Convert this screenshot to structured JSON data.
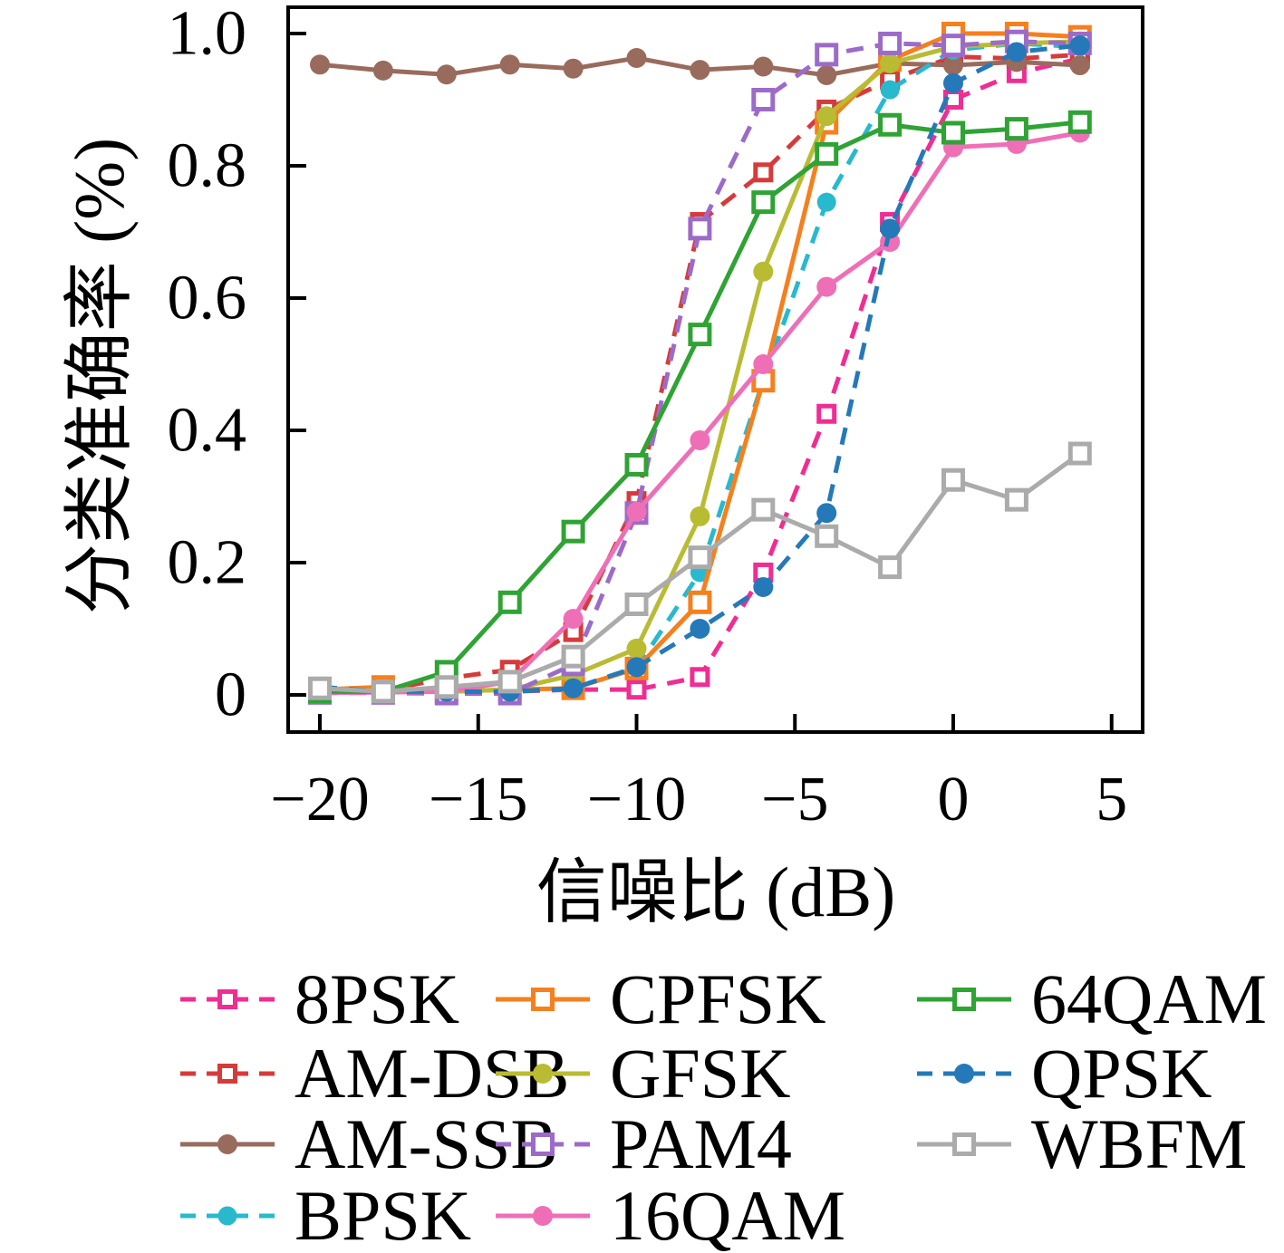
{
  "chart_data": {
    "type": "line",
    "title": "",
    "xlabel": "信噪比 (dB)",
    "ylabel": "分类准确率 (%)",
    "grid": false,
    "legend_position": "below-plot, 3 columns",
    "xlim": [
      -21,
      6
    ],
    "ylim": [
      -0.056,
      1.04
    ],
    "x": [
      -20,
      -18,
      -16,
      -14,
      -12,
      -10,
      -8,
      -6,
      -4,
      -2,
      0,
      2,
      4
    ],
    "x_ticks": [
      {
        "label": "−20",
        "value": -20
      },
      {
        "label": "−15",
        "value": -15
      },
      {
        "label": "−10",
        "value": -10
      },
      {
        "label": "−5",
        "value": -5
      },
      {
        "label": "0",
        "value": 0
      },
      {
        "label": "5",
        "value": 5
      }
    ],
    "y_ticks": [
      {
        "label": "1.0",
        "value": 1.0
      },
      {
        "label": "0.8",
        "value": 0.8
      },
      {
        "label": "0.6",
        "value": 0.6
      },
      {
        "label": "0.4",
        "value": 0.4
      },
      {
        "label": "0.2",
        "value": 0.2
      },
      {
        "label": "0",
        "value": 0.0
      }
    ],
    "series": [
      {
        "name": "8PSK",
        "color": "#f02d93",
        "line": "dashed",
        "marker": "square",
        "marker_size": 17,
        "values": [
          0.005,
          0.005,
          0.005,
          0.005,
          0.008,
          0.008,
          0.027,
          0.185,
          0.425,
          0.715,
          0.9,
          0.94,
          0.962
        ]
      },
      {
        "name": "AM-DSB",
        "color": "#d63b3b",
        "line": "dashed",
        "marker": "square",
        "marker_size": 17,
        "values": [
          0.007,
          0.007,
          0.025,
          0.038,
          0.095,
          0.293,
          0.715,
          0.79,
          0.885,
          0.93,
          0.965,
          0.962,
          0.968
        ]
      },
      {
        "name": "AM-SSB",
        "color": "#996b5d",
        "line": "solid",
        "marker": "circle",
        "marker_size": 22,
        "values": [
          0.953,
          0.944,
          0.938,
          0.953,
          0.947,
          0.963,
          0.945,
          0.95,
          0.937,
          0.955,
          0.952,
          0.957,
          0.952
        ]
      },
      {
        "name": "BPSK",
        "color": "#29b9ce",
        "line": "dashed",
        "marker": "circle",
        "marker_size": 21,
        "values": [
          0.005,
          0.003,
          0.003,
          0.005,
          0.01,
          0.04,
          0.185,
          0.475,
          0.745,
          0.915,
          0.975,
          0.985,
          0.98
        ]
      },
      {
        "name": "CPFSK",
        "color": "#f5801e",
        "line": "solid",
        "marker": "square",
        "marker_size": 21,
        "values": [
          0.008,
          0.012,
          0.005,
          0.008,
          0.01,
          0.04,
          0.14,
          0.475,
          0.865,
          0.96,
          1.0,
          1.0,
          0.995
        ]
      },
      {
        "name": "GFSK",
        "color": "#b9bc33",
        "line": "solid",
        "marker": "circle",
        "marker_size": 22,
        "values": [
          0.005,
          0.005,
          0.005,
          0.008,
          0.03,
          0.07,
          0.27,
          0.64,
          0.875,
          0.955,
          0.98,
          0.985,
          0.988
        ]
      },
      {
        "name": "PAM4",
        "color": "#9c6bc8",
        "line": "dashed",
        "marker": "square",
        "marker_size": 21,
        "values": [
          0.003,
          0.003,
          0.002,
          0.002,
          0.046,
          0.275,
          0.705,
          0.9,
          0.968,
          0.985,
          0.982,
          0.988,
          0.985
        ]
      },
      {
        "name": "16QAM",
        "color": "#ef6fb7",
        "line": "solid",
        "marker": "circle",
        "marker_size": 22,
        "values": [
          0.003,
          0.004,
          0.005,
          0.02,
          0.115,
          0.277,
          0.385,
          0.5,
          0.617,
          0.685,
          0.828,
          0.833,
          0.85
        ]
      },
      {
        "name": "64QAM",
        "color": "#2fa334",
        "line": "solid",
        "marker": "square",
        "marker_size": 21,
        "values": [
          0.005,
          0.005,
          0.035,
          0.14,
          0.247,
          0.348,
          0.545,
          0.745,
          0.818,
          0.862,
          0.85,
          0.856,
          0.866
        ]
      },
      {
        "name": "QPSK",
        "color": "#2579b8",
        "line": "dashed",
        "marker": "circle",
        "marker_size": 22,
        "values": [
          0.012,
          0.005,
          0.005,
          0.005,
          0.01,
          0.042,
          0.1,
          0.163,
          0.275,
          0.705,
          0.925,
          0.972,
          0.982
        ]
      },
      {
        "name": "WBFM",
        "color": "#ababab",
        "line": "solid",
        "marker": "square",
        "marker_size": 21,
        "values": [
          0.01,
          0.005,
          0.012,
          0.02,
          0.058,
          0.137,
          0.208,
          0.28,
          0.24,
          0.193,
          0.325,
          0.295,
          0.365
        ]
      }
    ],
    "legend_columns": [
      [
        "8PSK",
        "AM-DSB",
        "AM-SSB",
        "BPSK"
      ],
      [
        "CPFSK",
        "GFSK",
        "PAM4",
        "16QAM"
      ],
      [
        "64QAM",
        "QPSK",
        "WBFM"
      ]
    ]
  }
}
